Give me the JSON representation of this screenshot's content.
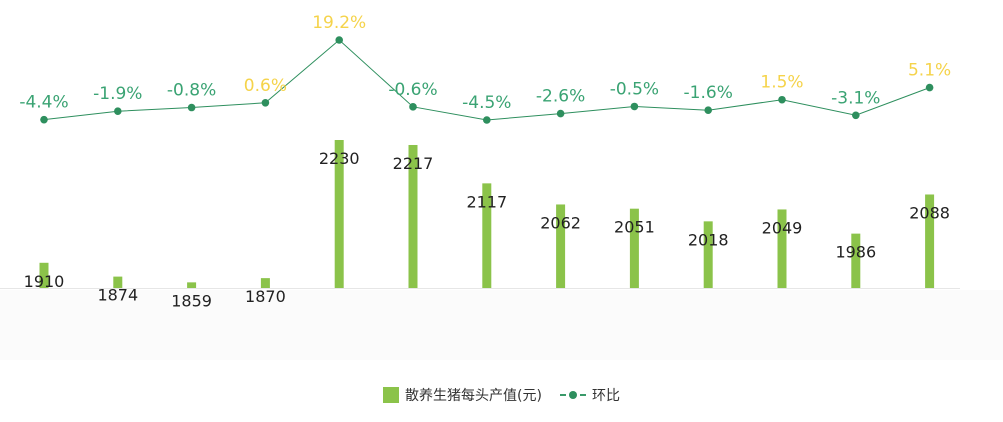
{
  "chart_data": {
    "type": "bar",
    "categories": [
      "",
      "",
      "",
      "",
      "",
      "",
      "",
      "",
      "",
      "",
      "",
      "",
      ""
    ],
    "series": [
      {
        "name": "散养生猪每头产值(元)",
        "kind": "bar",
        "color": "#8bc34a",
        "values": [
          1910,
          1874,
          1859,
          1870,
          2230,
          2217,
          2117,
          2062,
          2051,
          2018,
          2049,
          1986,
          2088
        ]
      },
      {
        "name": "环比",
        "kind": "line",
        "color": "#2e8f5e",
        "values": [
          -4.4,
          -1.9,
          -0.8,
          0.6,
          19.2,
          -0.6,
          -4.5,
          -2.6,
          -0.5,
          -1.6,
          1.5,
          -3.1,
          5.1
        ],
        "labels": [
          "-4.4%",
          "-1.9%",
          "-0.8%",
          "0.6%",
          "19.2%",
          "-0.6%",
          "-4.5%",
          "-2.6%",
          "-0.5%",
          "-1.6%",
          "1.5%",
          "-3.1%",
          "5.1%"
        ]
      }
    ],
    "positive_label_color": "#f5d34a",
    "negative_label_color": "#3aa373",
    "legend_position": "bottom",
    "grid": false
  }
}
